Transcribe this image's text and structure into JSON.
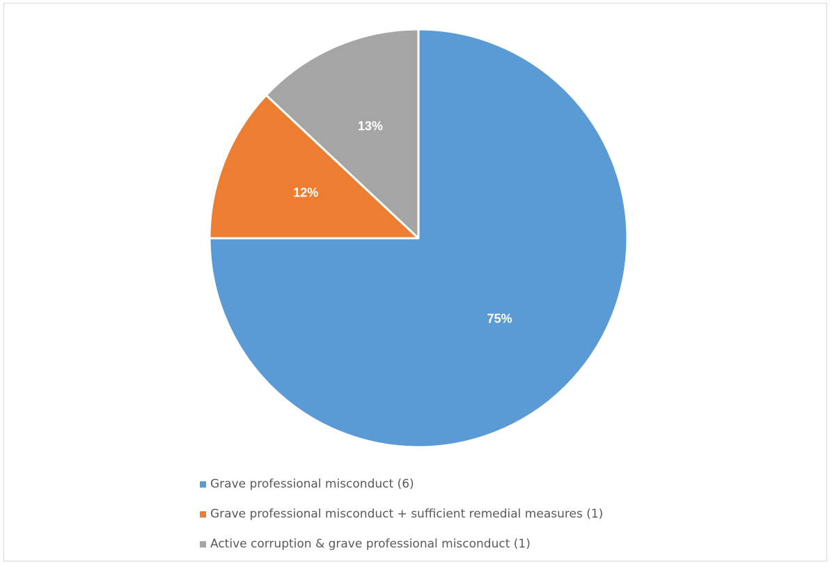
{
  "chart_data": {
    "type": "pie",
    "slices": [
      {
        "label": "Grave professional misconduct (6)",
        "value": 75,
        "display": "75%",
        "color": "#5b9bd5"
      },
      {
        "label": "Grave professional misconduct + sufficient remedial measures (1)",
        "value": 12,
        "display": "12%",
        "color": "#ed7d31"
      },
      {
        "label": "Active corruption & grave professional misconduct (1)",
        "value": 13,
        "display": "13%",
        "color": "#a5a5a5"
      }
    ],
    "start_angle": "12 o'clock",
    "direction": "clockwise",
    "legend_position": "bottom"
  }
}
